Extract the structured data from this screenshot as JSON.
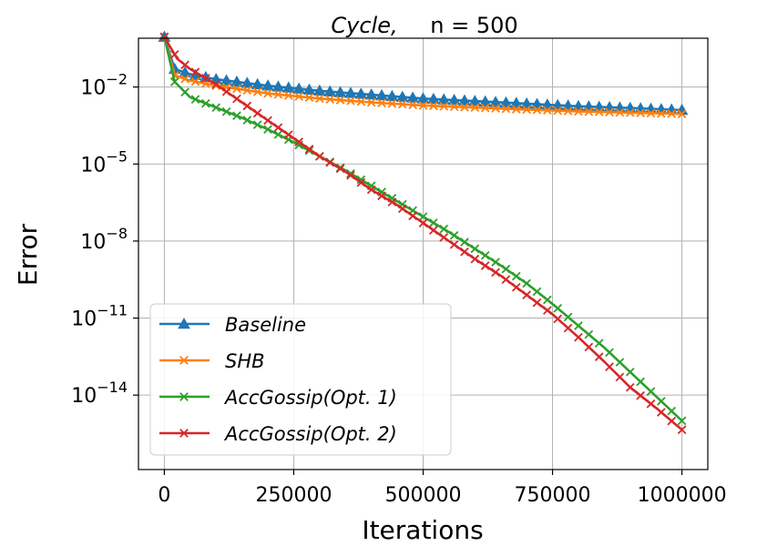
{
  "chart_data": {
    "type": "line",
    "title_italic": "Cycle,",
    "title_rest": "n = 500",
    "xlabel": "Iterations",
    "ylabel": "Error",
    "x_scale": "linear",
    "y_scale": "log",
    "xlim": [
      -50000,
      1050000
    ],
    "ylim_log10": [
      -16.9,
      -0.1
    ],
    "x_ticks": [
      0,
      250000,
      500000,
      750000,
      1000000
    ],
    "x_tick_labels": [
      "0",
      "250000",
      "500000",
      "750000",
      "1000000"
    ],
    "y_ticks_log10": [
      -2,
      -5,
      -8,
      -11,
      -14
    ],
    "y_tick_labels": [
      "-2",
      "-5",
      "-8",
      "-11",
      "-14"
    ],
    "y_tick_base": "10",
    "grid": true,
    "legend_position": "lower-left",
    "series": [
      {
        "name": "Baseline",
        "color": "#1f77b4",
        "marker": "triangle",
        "x": [
          0,
          20000,
          50000,
          100000,
          200000,
          300000,
          400000,
          500000,
          600000,
          700000,
          800000,
          900000,
          1000000
        ],
        "log10_y": [
          -0.05,
          -1.3,
          -1.5,
          -1.7,
          -1.95,
          -2.15,
          -2.3,
          -2.45,
          -2.55,
          -2.65,
          -2.75,
          -2.82,
          -2.9
        ]
      },
      {
        "name": "SHB",
        "color": "#ff7f0e",
        "marker": "x",
        "x": [
          0,
          20000,
          50000,
          100000,
          200000,
          300000,
          400000,
          500000,
          600000,
          700000,
          800000,
          900000,
          1000000
        ],
        "log10_y": [
          -0.05,
          -1.55,
          -1.75,
          -1.95,
          -2.25,
          -2.45,
          -2.6,
          -2.72,
          -2.8,
          -2.88,
          -2.95,
          -3.0,
          -3.05
        ]
      },
      {
        "name": "AccGossip(Opt. 1)",
        "color": "#2ca02c",
        "marker": "x",
        "x": [
          0,
          20000,
          50000,
          100000,
          150000,
          200000,
          250000,
          300000,
          350000,
          400000,
          450000,
          500000,
          550000,
          600000,
          650000,
          700000,
          750000,
          800000,
          850000,
          900000,
          950000,
          1000000
        ],
        "log10_y": [
          -0.05,
          -1.8,
          -2.4,
          -2.8,
          -3.2,
          -3.65,
          -4.15,
          -4.7,
          -5.25,
          -5.85,
          -6.45,
          -7.05,
          -7.65,
          -8.3,
          -8.95,
          -9.65,
          -10.45,
          -11.3,
          -12.15,
          -13.1,
          -14.05,
          -15.0
        ]
      },
      {
        "name": "AccGossip(Opt. 2)",
        "color": "#d62728",
        "marker": "x",
        "x": [
          0,
          25000,
          50000,
          100000,
          150000,
          200000,
          250000,
          300000,
          350000,
          400000,
          450000,
          500000,
          550000,
          600000,
          650000,
          700000,
          750000,
          800000,
          850000,
          900000,
          950000,
          1000000
        ],
        "log10_y": [
          -0.05,
          -0.9,
          -1.3,
          -1.9,
          -2.6,
          -3.3,
          -4.0,
          -4.7,
          -5.3,
          -6.0,
          -6.6,
          -7.3,
          -8.0,
          -8.7,
          -9.35,
          -10.1,
          -10.85,
          -11.75,
          -12.7,
          -13.7,
          -14.5,
          -15.35
        ]
      }
    ]
  }
}
